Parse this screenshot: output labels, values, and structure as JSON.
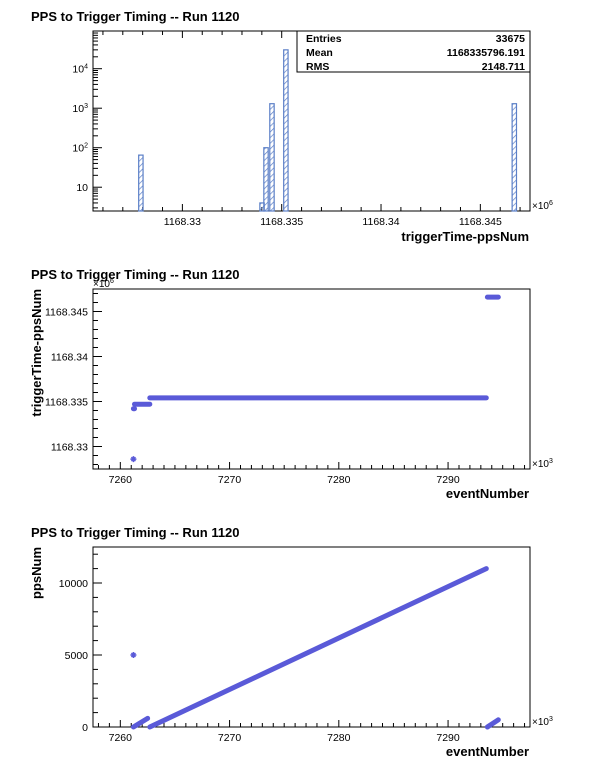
{
  "chart_data": [
    {
      "type": "histogram",
      "title": "PPS to Trigger Timing -- Run 1120",
      "xlabel": "triggerTime-ppsNum",
      "ylabel": "",
      "x_multiplier": "×10^6",
      "xlim": [
        1168.3255,
        1168.3475
      ],
      "ylim": [
        2.5,
        90000
      ],
      "log_y": true,
      "x_ticks": [
        "1168.33",
        "1168.335",
        "1168.34",
        "1168.345"
      ],
      "y_ticks": [
        "10",
        "10^2",
        "10^3",
        "10^4"
      ],
      "bins": [
        {
          "x": 1168.3278,
          "width": 0.00022,
          "count": 65
        },
        {
          "x": 1168.3339,
          "width": 0.00022,
          "count": 4
        },
        {
          "x": 1168.3341,
          "width": 0.00022,
          "count": 100
        },
        {
          "x": 1168.3344,
          "width": 0.00022,
          "count": 1300
        },
        {
          "x": 1168.3351,
          "width": 0.00022,
          "count": 30000
        },
        {
          "x": 1168.3466,
          "width": 0.00022,
          "count": 1300
        }
      ],
      "stats": [
        {
          "label": "Entries",
          "value": "33675"
        },
        {
          "label": "Mean",
          "value": "1168335796.191"
        },
        {
          "label": "RMS",
          "value": "2148.711"
        }
      ],
      "colors": {
        "line": "#5b7fc7",
        "hatch": "#5b7fc7",
        "axis": "#000000"
      }
    },
    {
      "type": "scatter",
      "title": "PPS to Trigger Timing -- Run 1120",
      "xlabel": "eventNumber",
      "ylabel": "triggerTime-ppsNum",
      "x_multiplier": "×10^3",
      "y_multiplier": "×10^6",
      "xlim": [
        7257.5,
        7297.5
      ],
      "ylim": [
        1168.3275,
        1168.3475
      ],
      "x_ticks": [
        "7260",
        "7270",
        "7280",
        "7290"
      ],
      "y_ticks": [
        "1168.33",
        "1168.335",
        "1168.34",
        "1168.345"
      ],
      "segments": [
        {
          "x0": 7261.2,
          "x1": 7261.2,
          "y": 1168.3286
        },
        {
          "x0": 7261.2,
          "x1": 7261.3,
          "y": 1168.3342
        },
        {
          "x0": 7261.3,
          "x1": 7262.7,
          "y": 1168.3347
        },
        {
          "x0": 7262.7,
          "x1": 7293.5,
          "y": 1168.3354
        },
        {
          "x0": 7293.6,
          "x1": 7294.6,
          "y": 1168.3466
        }
      ],
      "colors": {
        "marker": "#5a5ad8",
        "axis": "#000000"
      }
    },
    {
      "type": "scatter",
      "title": "PPS to Trigger Timing -- Run 1120",
      "xlabel": "eventNumber",
      "ylabel": "ppsNum",
      "x_multiplier": "×10^3",
      "xlim": [
        7257.5,
        7297.5
      ],
      "ylim": [
        0,
        12500
      ],
      "x_ticks": [
        "7260",
        "7270",
        "7280",
        "7290"
      ],
      "y_ticks": [
        "0",
        "5000",
        "10000"
      ],
      "segments": [
        {
          "x0": 7261.2,
          "x1": 7261.2,
          "y0": 5000,
          "y1": 5000
        },
        {
          "x0": 7261.2,
          "x1": 7262.5,
          "y0": 0,
          "y1": 600
        },
        {
          "x0": 7262.7,
          "x1": 7293.5,
          "y0": 0,
          "y1": 11000
        },
        {
          "x0": 7293.6,
          "x1": 7294.6,
          "y0": 0,
          "y1": 500
        }
      ],
      "colors": {
        "marker": "#5a5ad8",
        "axis": "#000000"
      }
    }
  ]
}
